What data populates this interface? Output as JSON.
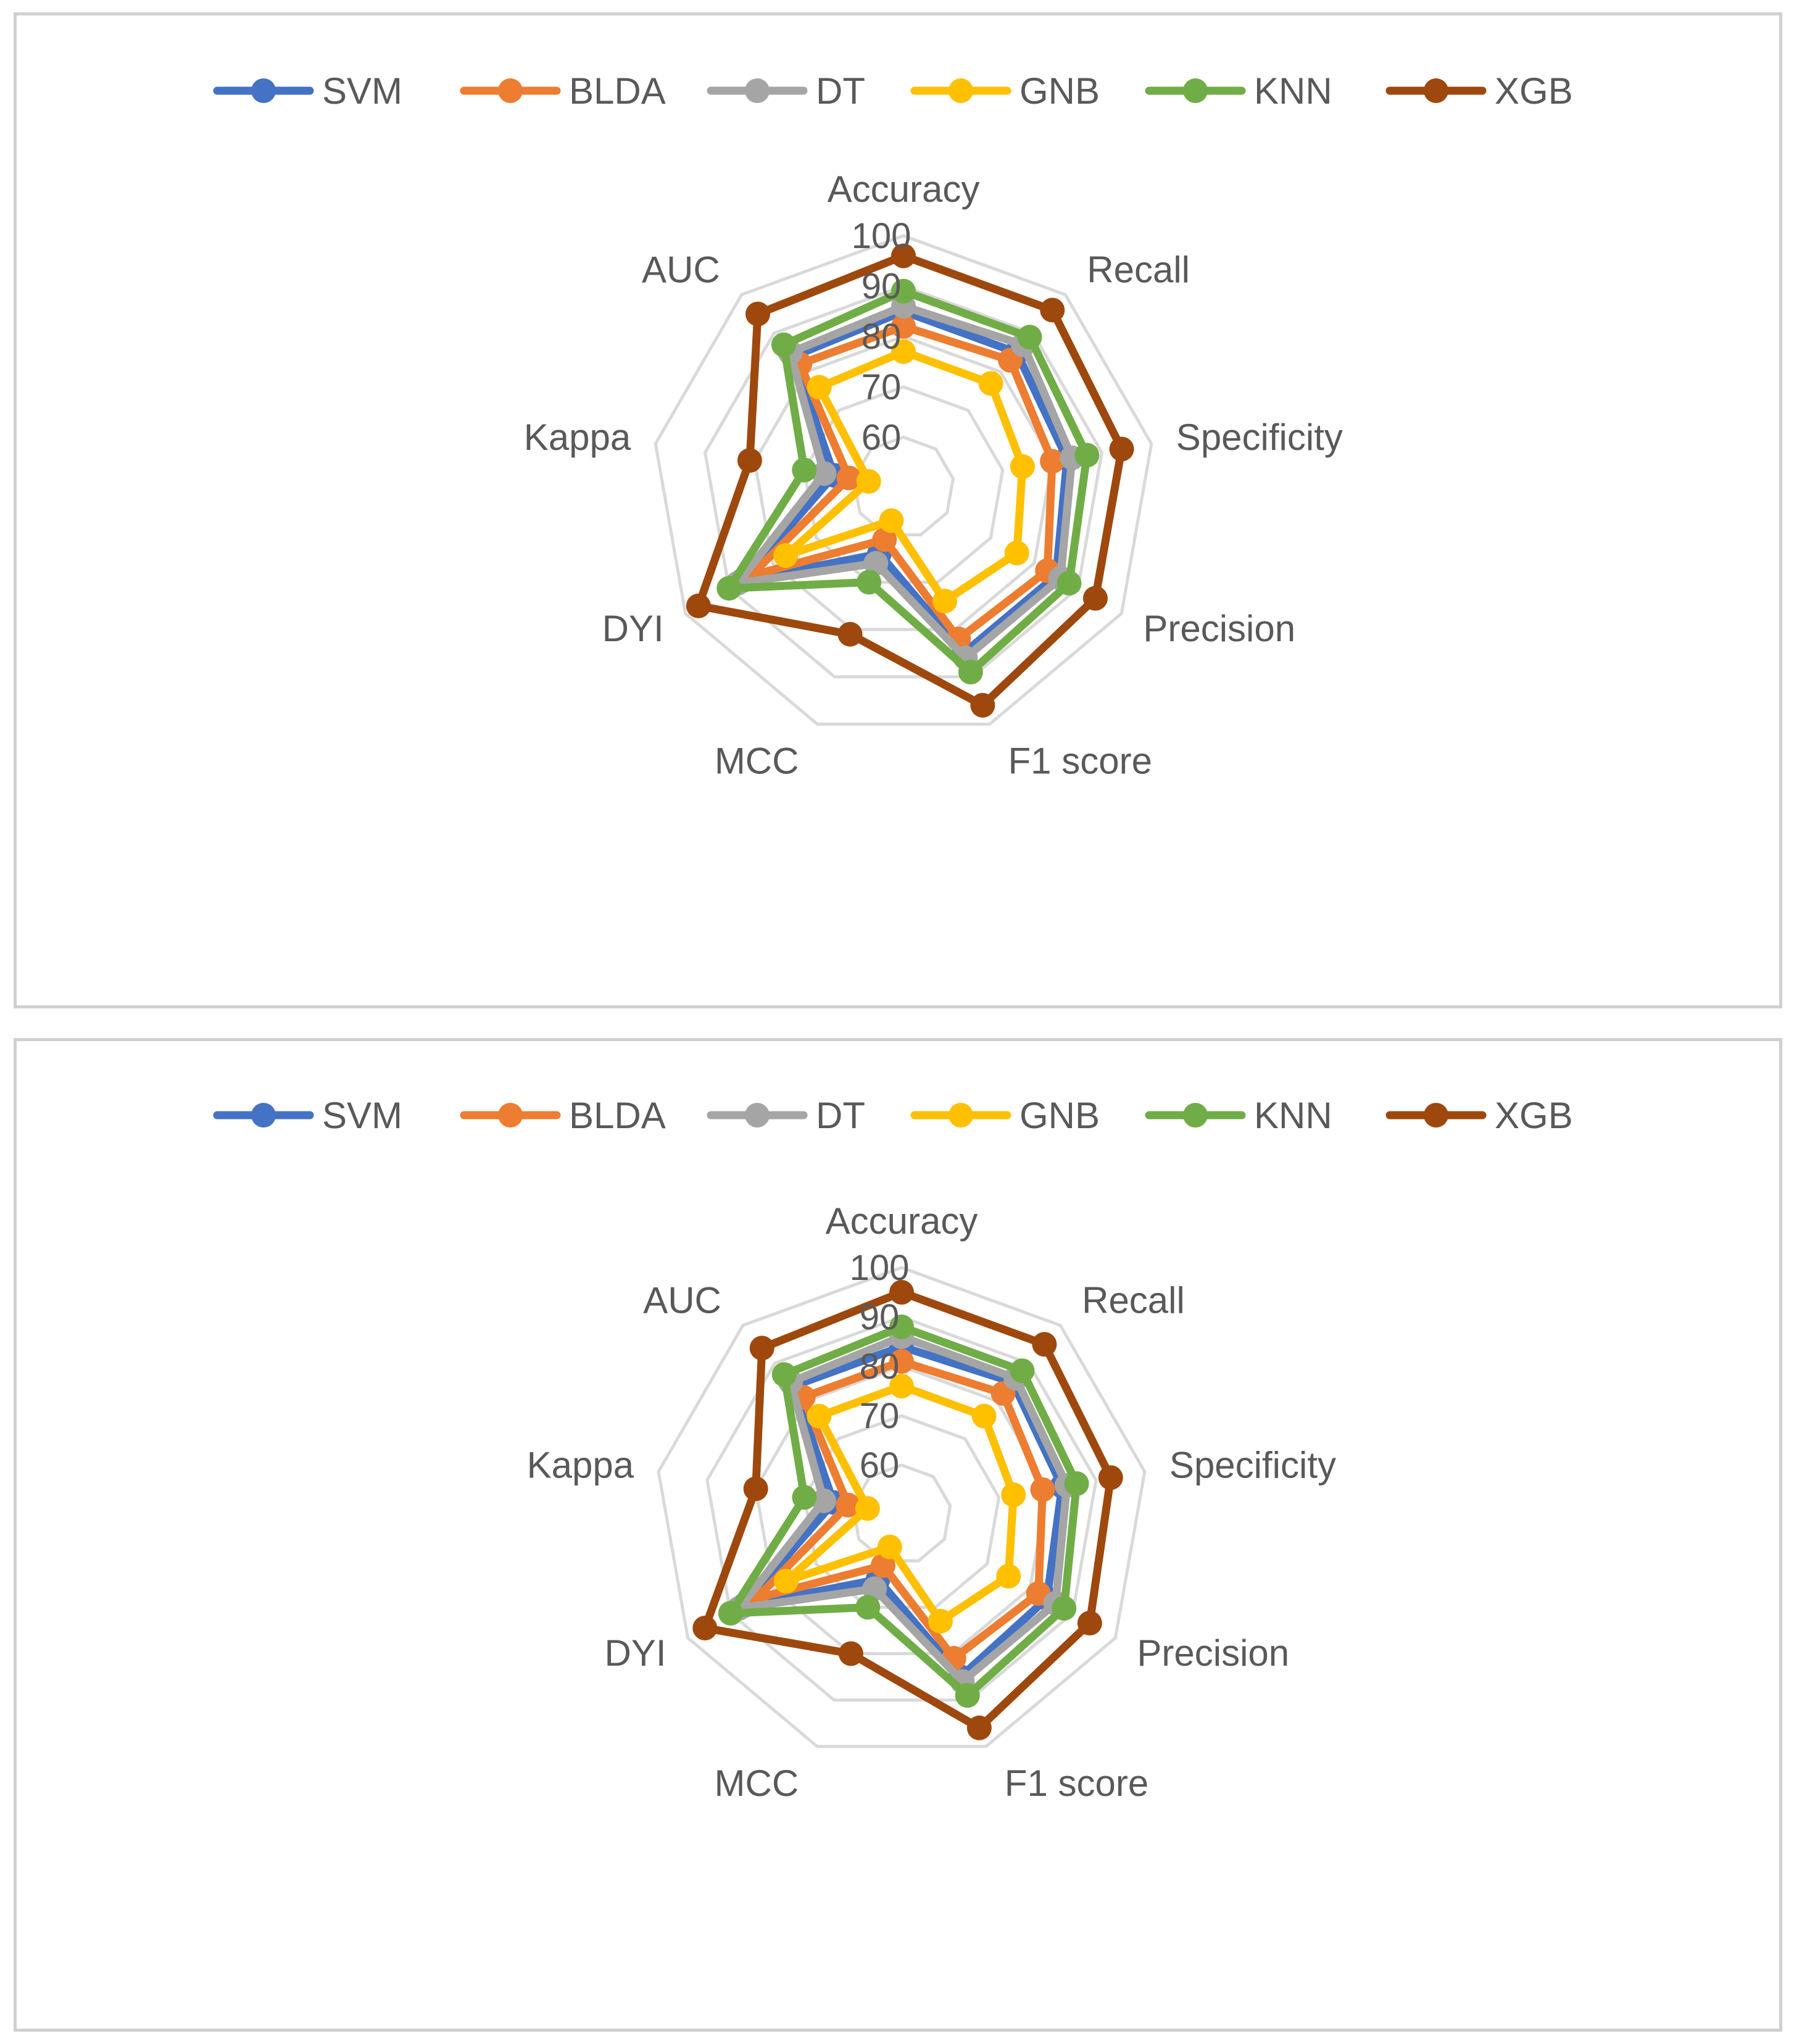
{
  "chart_data": [
    {
      "type": "radar",
      "title": "",
      "axes": [
        "Accuracy",
        "Recall",
        "Specificity",
        "Precision",
        "F1 score",
        "MCC",
        "DYI",
        "Kappa",
        "AUC"
      ],
      "tick_labels": [
        "60",
        "70",
        "80",
        "90",
        "100"
      ],
      "range": [
        50,
        100
      ],
      "legend_position": "top",
      "series": [
        {
          "name": "SVM",
          "color": "#4472C4",
          "values": [
            85,
            85,
            83,
            85,
            85,
            64,
            87,
            64,
            84
          ]
        },
        {
          "name": "BLDA",
          "color": "#ED7D31",
          "values": [
            82,
            83,
            80,
            83,
            82,
            61,
            85,
            61,
            82
          ]
        },
        {
          "name": "DT",
          "color": "#A5A5A5",
          "values": [
            86,
            87,
            84,
            86,
            86,
            66,
            88,
            66,
            85
          ]
        },
        {
          "name": "GNB",
          "color": "#FFC000",
          "values": [
            77,
            77,
            74,
            76,
            74,
            57,
            77,
            57,
            76
          ]
        },
        {
          "name": "KNN",
          "color": "#70AD47",
          "values": [
            89,
            89,
            87,
            88,
            89,
            70,
            90,
            70,
            87
          ]
        },
        {
          "name": "XGB",
          "color": "#9E480E",
          "values": [
            96,
            96,
            94,
            94,
            96,
            81,
            97,
            81,
            95
          ]
        }
      ]
    },
    {
      "type": "radar",
      "title": "",
      "axes": [
        "Accuracy",
        "Recall",
        "Specificity",
        "Precision",
        "F1 score",
        "MCC",
        "DYI",
        "Kappa",
        "AUC"
      ],
      "tick_labels": [
        "60",
        "70",
        "80",
        "90",
        "100"
      ],
      "range": [
        50,
        100
      ],
      "legend_position": "top",
      "series": [
        {
          "name": "SVM",
          "color": "#4472C4",
          "values": [
            84,
            85,
            83,
            84,
            85,
            64,
            87,
            64,
            84
          ]
        },
        {
          "name": "BLDA",
          "color": "#ED7D31",
          "values": [
            81,
            82,
            79,
            82,
            81,
            61,
            84,
            61,
            81
          ]
        },
        {
          "name": "DT",
          "color": "#A5A5A5",
          "values": [
            86,
            86,
            84,
            86,
            86,
            66,
            88,
            66,
            85
          ]
        },
        {
          "name": "GNB",
          "color": "#FFC000",
          "values": [
            76,
            76,
            73,
            75,
            73,
            57,
            77,
            57,
            76
          ]
        },
        {
          "name": "KNN",
          "color": "#70AD47",
          "values": [
            88,
            88,
            86,
            88,
            89,
            70,
            90,
            70,
            87
          ]
        },
        {
          "name": "XGB",
          "color": "#9E480E",
          "values": [
            95,
            95,
            93,
            94,
            96,
            80,
            96,
            80,
            94
          ]
        }
      ]
    }
  ]
}
